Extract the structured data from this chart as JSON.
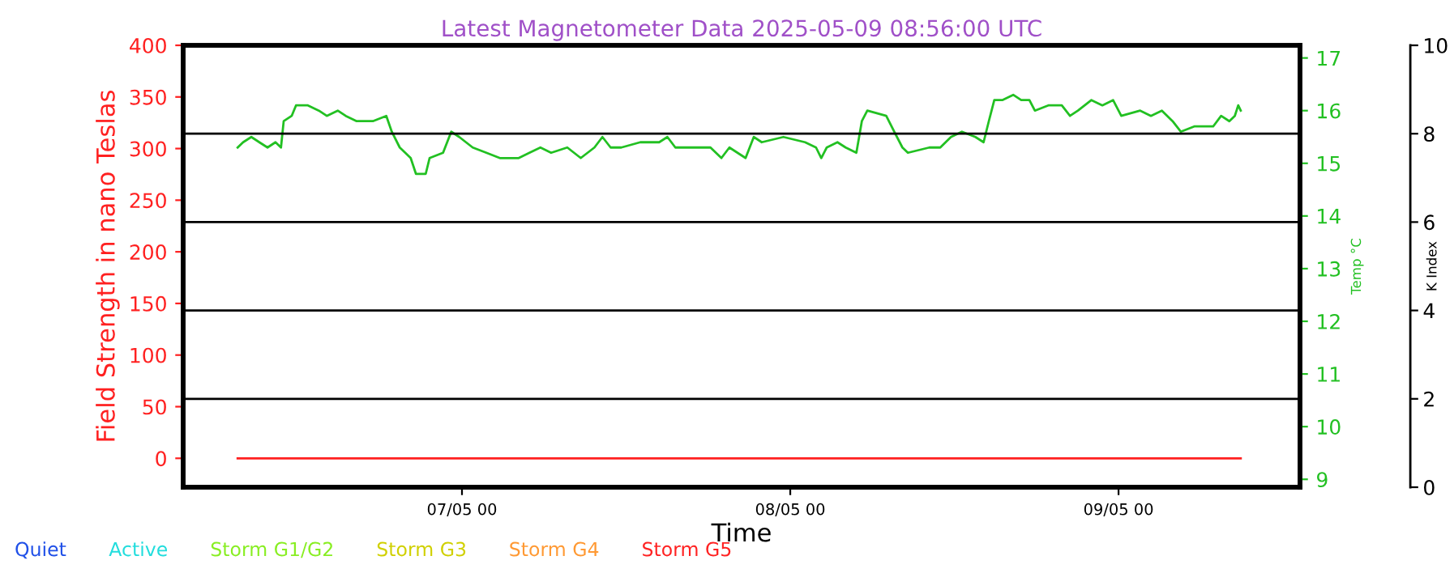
{
  "chart_data": {
    "type": "line",
    "title": "Latest Magnetometer Data 2025-05-09 08:56:00 UTC",
    "xlabel": "Time",
    "ylabel": "Field Strength in nano Teslas",
    "y2label": "Temp °C",
    "y3label": "K Index",
    "xlim": [
      "2025-05-06T03:37",
      "2025-05-09T13:16"
    ],
    "xticks": [
      {
        "value": "2025-05-07",
        "label": "07/05 00"
      },
      {
        "value": "2025-05-08",
        "label": "08/05 00"
      },
      {
        "value": "2025-05-09",
        "label": "09/05 00"
      }
    ],
    "ylim": [
      -28,
      400
    ],
    "yticks": [
      0,
      50,
      100,
      150,
      200,
      250,
      300,
      350,
      400
    ],
    "y2lim": [
      8.85,
      17.24
    ],
    "y2ticks": [
      9,
      10,
      11,
      12,
      13,
      14,
      15,
      16,
      17
    ],
    "y3lim": [
      0,
      10
    ],
    "y3ticks": [
      0,
      2,
      4,
      6,
      8,
      10
    ],
    "grid": false,
    "ref_lines": [
      {
        "axis": "y3",
        "value": 2,
        "color": "#000000"
      },
      {
        "axis": "y3",
        "value": 4,
        "color": "#000000"
      },
      {
        "axis": "y3",
        "value": 6,
        "color": "#000000"
      },
      {
        "axis": "y3",
        "value": 8,
        "color": "#000000"
      }
    ],
    "series": [
      {
        "color": "#ff2020",
        "x": [
          "2025-05-06T07:36",
          "2025-05-09T08:56"
        ],
        "values": [
          0,
          0
        ]
      },
      {
        "axis": "y2",
        "color": "#22c022",
        "x": [
          "2025-05-06T07:36",
          "2025-05-06T08:00",
          "2025-05-06T08:36",
          "2025-05-06T09:11",
          "2025-05-06T09:47",
          "2025-05-06T10:22",
          "2025-05-06T10:46",
          "2025-05-06T10:58",
          "2025-05-06T11:33",
          "2025-05-06T11:52",
          "2025-05-06T12:33",
          "2025-05-06T12:44",
          "2025-05-06T13:32",
          "2025-05-06T14:07",
          "2025-05-06T14:55",
          "2025-05-06T15:30",
          "2025-05-06T16:18",
          "2025-05-06T17:29",
          "2025-05-06T18:28",
          "2025-05-06T18:52",
          "2025-05-06T19:27",
          "2025-05-06T20:15",
          "2025-05-06T20:38",
          "2025-05-06T21:21",
          "2025-05-06T21:38",
          "2025-05-06T22:37",
          "2025-05-06T23:13",
          "2025-05-06T23:48",
          "2025-05-07T00:47",
          "2025-05-07T01:47",
          "2025-05-07T02:46",
          "2025-05-07T04:09",
          "2025-05-07T04:56",
          "2025-05-07T05:44",
          "2025-05-07T06:31",
          "2025-05-07T07:42",
          "2025-05-07T08:41",
          "2025-05-07T09:41",
          "2025-05-07T10:16",
          "2025-05-07T10:52",
          "2025-05-07T11:39",
          "2025-05-07T13:02",
          "2025-05-07T14:25",
          "2025-05-07T15:01",
          "2025-05-07T15:36",
          "2025-05-07T16:48",
          "2025-05-07T18:10",
          "2025-05-07T18:58",
          "2025-05-07T19:33",
          "2025-05-07T20:44",
          "2025-05-07T21:20",
          "2025-05-07T21:55",
          "2025-05-07T23:30",
          "2025-05-08T01:05",
          "2025-05-08T01:53",
          "2025-05-08T02:16",
          "2025-05-08T02:40",
          "2025-05-08T03:27",
          "2025-05-08T04:03",
          "2025-05-08T04:50",
          "2025-05-08T05:14",
          "2025-05-08T05:38",
          "2025-05-08T07:01",
          "2025-05-08T07:36",
          "2025-05-08T08:12",
          "2025-05-08T08:36",
          "2025-05-08T10:10",
          "2025-05-08T10:58",
          "2025-05-08T11:45",
          "2025-05-08T12:33",
          "2025-05-08T13:32",
          "2025-05-08T14:08",
          "2025-05-08T14:31",
          "2025-05-08T14:55",
          "2025-05-08T15:30",
          "2025-05-08T16:18",
          "2025-05-08T16:53",
          "2025-05-08T17:29",
          "2025-05-08T17:53",
          "2025-05-08T18:52",
          "2025-05-08T19:51",
          "2025-05-08T20:27",
          "2025-05-08T21:02",
          "2025-05-08T22:01",
          "2025-05-08T22:49",
          "2025-05-08T23:36",
          "2025-05-09T00:12",
          "2025-05-09T01:35",
          "2025-05-09T02:22",
          "2025-05-09T03:10",
          "2025-05-09T03:57",
          "2025-05-09T04:33",
          "2025-05-09T05:32",
          "2025-05-09T06:31",
          "2025-05-09T06:55",
          "2025-05-09T07:30",
          "2025-05-09T08:06",
          "2025-05-09T08:30",
          "2025-05-09T08:45",
          "2025-05-09T08:56"
        ],
        "values": [
          15.3,
          15.4,
          15.5,
          15.4,
          15.3,
          15.4,
          15.3,
          15.8,
          15.9,
          16.1,
          16.1,
          16.1,
          16.0,
          15.9,
          16.0,
          15.9,
          15.8,
          15.8,
          15.9,
          15.6,
          15.3,
          15.1,
          14.8,
          14.8,
          15.1,
          15.2,
          15.6,
          15.5,
          15.3,
          15.2,
          15.1,
          15.1,
          15.2,
          15.3,
          15.2,
          15.3,
          15.1,
          15.3,
          15.5,
          15.3,
          15.3,
          15.4,
          15.4,
          15.5,
          15.3,
          15.3,
          15.3,
          15.1,
          15.3,
          15.1,
          15.5,
          15.4,
          15.5,
          15.4,
          15.3,
          15.1,
          15.3,
          15.4,
          15.3,
          15.2,
          15.8,
          16.0,
          15.9,
          15.6,
          15.3,
          15.2,
          15.3,
          15.3,
          15.5,
          15.6,
          15.5,
          15.4,
          15.8,
          16.2,
          16.2,
          16.3,
          16.2,
          16.2,
          16.0,
          16.1,
          16.1,
          15.9,
          16.0,
          16.2,
          16.1,
          16.2,
          15.9,
          16.0,
          15.9,
          16.0,
          15.8,
          15.6,
          15.7,
          15.7,
          15.7,
          15.9,
          15.8,
          15.9,
          16.1,
          16.0
        ]
      },
      {
        "name": "Quiet",
        "color": "#2050e8"
      },
      {
        "name": "Active",
        "color": "#22dddd"
      },
      {
        "name": "Storm G1/G2",
        "color": "#88ee22"
      },
      {
        "name": "Storm G3",
        "color": "#d0d000"
      },
      {
        "name": "Storm G4",
        "color": "#ff9933"
      },
      {
        "name": "Storm G5",
        "color": "#ff2222"
      }
    ]
  }
}
